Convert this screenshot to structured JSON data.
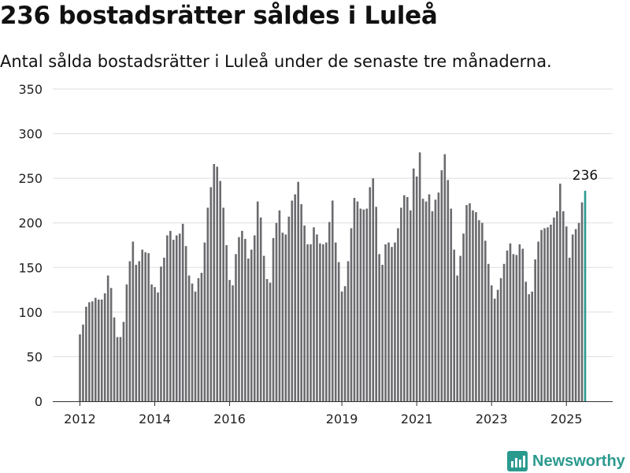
{
  "title": "236 bostadsrätter såldes i Luleå",
  "subtitle": "Antal sålda bostadsrätter i Luleå under de senaste tre månaderna.",
  "brand": {
    "name": "Newsworthy",
    "icon": "newsworthy-logo-icon"
  },
  "colors": {
    "bar": "#6b6a6e",
    "highlight": "#2b9a8e",
    "grid": "#dddddd",
    "axis": "#333333",
    "text": "#222222"
  },
  "chart_data": {
    "type": "bar",
    "title": "",
    "xlabel": "",
    "ylabel": "",
    "ylim": [
      0,
      350
    ],
    "yticks": [
      0,
      50,
      100,
      150,
      200,
      250,
      300,
      350
    ],
    "xticks": [
      "2012",
      "2014",
      "2016",
      "2019",
      "2021",
      "2023",
      "2025"
    ],
    "grid": true,
    "period": "monthly, rolling 3-month total",
    "start": "2012-01",
    "highlight_last": true,
    "annotation": {
      "label": "236",
      "index": 162
    },
    "values": [
      75,
      86,
      106,
      111,
      112,
      116,
      114,
      114,
      121,
      141,
      127,
      94,
      72,
      72,
      89,
      131,
      157,
      179,
      153,
      157,
      170,
      167,
      166,
      131,
      128,
      122,
      151,
      161,
      186,
      191,
      181,
      186,
      188,
      199,
      174,
      141,
      132,
      123,
      138,
      144,
      178,
      217,
      240,
      266,
      263,
      247,
      217,
      175,
      136,
      130,
      165,
      184,
      191,
      182,
      160,
      170,
      186,
      224,
      206,
      163,
      137,
      133,
      183,
      200,
      214,
      189,
      187,
      207,
      225,
      232,
      246,
      221,
      197,
      176,
      176,
      195,
      187,
      177,
      176,
      178,
      201,
      225,
      178,
      156,
      123,
      129,
      157,
      194,
      228,
      224,
      216,
      215,
      216,
      240,
      250,
      218,
      165,
      153,
      176,
      178,
      173,
      178,
      194,
      217,
      231,
      229,
      214,
      261,
      252,
      279,
      227,
      224,
      232,
      213,
      226,
      234,
      259,
      277,
      248,
      216,
      170,
      141,
      163,
      188,
      220,
      222,
      214,
      212,
      203,
      200,
      180,
      154,
      130,
      115,
      125,
      138,
      154,
      169,
      177,
      165,
      164,
      176,
      171,
      134,
      120,
      123,
      159,
      179,
      192,
      194,
      195,
      198,
      206,
      213,
      244,
      213,
      196,
      161,
      187,
      193,
      200,
      223,
      236
    ]
  }
}
